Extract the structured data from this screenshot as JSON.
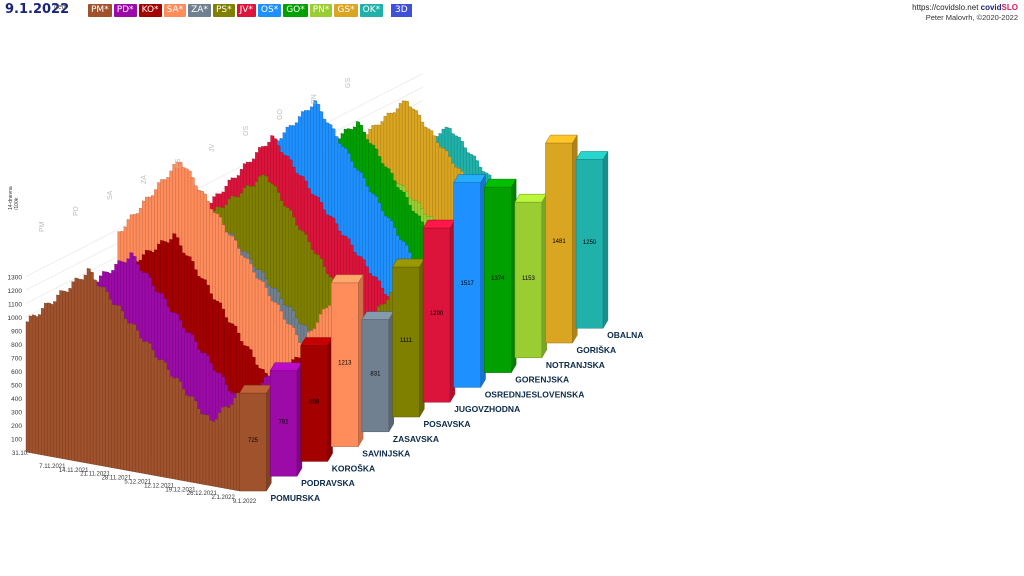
{
  "header": {
    "date": "9.1.2022",
    "weekday": "ned",
    "mode_button": "3D",
    "url_prefix": "https://covidslo.net ",
    "brand_covid": "covid",
    "brand_slo": "SLO",
    "author": "Peter Malovrh, ©2020-2022"
  },
  "regions": [
    {
      "code": "PM*",
      "name": "POMURSKA",
      "color": "#a0522d",
      "last": 725
    },
    {
      "code": "PD*",
      "name": "PODRAVSKA",
      "color": "#9c0aa8",
      "last": 781
    },
    {
      "code": "KO*",
      "name": "KOROŠKA",
      "color": "#a50000",
      "last": 858
    },
    {
      "code": "SA*",
      "name": "SAVINJSKA",
      "color": "#ff8c5a",
      "last": 1213
    },
    {
      "code": "ZA*",
      "name": "ZASAVSKA",
      "color": "#708090",
      "last": 831
    },
    {
      "code": "PS*",
      "name": "POSAVSKA",
      "color": "#808000",
      "last": 1111
    },
    {
      "code": "JV*",
      "name": "JUGOVZHODNA",
      "color": "#dc143c",
      "last": 1290
    },
    {
      "code": "OS*",
      "name": "OSREDNJESLOVENSKA",
      "color": "#1e90ff",
      "last": 1517
    },
    {
      "code": "GO*",
      "name": "GORENJSKA",
      "color": "#00a000",
      "last": 1374
    },
    {
      "code": "PN*",
      "name": "NOTRANJSKA",
      "color": "#9acd32",
      "last": 1153
    },
    {
      "code": "GS*",
      "name": "GORIŠKA",
      "color": "#daa520",
      "last": 1481
    },
    {
      "code": "OK*",
      "name": "OBALNA",
      "color": "#20b2aa",
      "last": 1250
    }
  ],
  "chart_data": {
    "type": "bar",
    "variant": "3d-stacked-rows",
    "y_ticks": [
      "1300",
      "1200",
      "1100",
      "1000",
      "900",
      "800",
      "700",
      "600",
      "500",
      "400",
      "300",
      "200",
      "100"
    ],
    "y_axis_title_lines": [
      "14-dnevna",
      "/100k"
    ],
    "x_start_label": "31.10.",
    "x_date_labels": [
      "7.11.2021",
      "14.11.2021",
      "21.11.2021",
      "28.11.2021",
      "5.12.2021",
      "12.12.2021",
      "19.12.2021",
      "26.12.2021",
      "2.1.2022",
      "9.1.2022"
    ],
    "back_labels": [
      "PM",
      "PD",
      "SA",
      "ZA",
      "PS",
      "JV",
      "OS",
      "GO",
      "PN",
      "GS"
    ],
    "last_day_values": [
      725,
      781,
      858,
      1213,
      831,
      1111,
      1290,
      1517,
      1374,
      1153,
      1481,
      1250
    ]
  }
}
